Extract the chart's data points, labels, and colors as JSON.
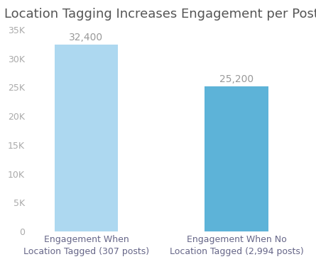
{
  "title": "Location Tagging Increases Engagement per Post",
  "categories": [
    "Engagement When\nLocation Tagged (307 posts)",
    "Engagement When No\nLocation Tagged (2,994 posts)"
  ],
  "values": [
    32400,
    25200
  ],
  "bar_labels": [
    "32,400",
    "25,200"
  ],
  "bar_colors": [
    "#add8f0",
    "#5db3d8"
  ],
  "ylim": [
    0,
    35000
  ],
  "ytick_values": [
    0,
    5000,
    10000,
    15000,
    20000,
    25000,
    30000,
    35000
  ],
  "ytick_labels": [
    "0",
    "5K",
    "10K",
    "15K",
    "20K",
    "25K",
    "30K",
    "35K"
  ],
  "background_color": "#ffffff",
  "title_color": "#555555",
  "tick_color": "#aaaaaa",
  "xlabel_color": "#666688",
  "bar_label_color": "#999999",
  "title_fontsize": 13,
  "tick_fontsize": 9,
  "bar_label_fontsize": 10,
  "xlabel_fontsize": 9,
  "bar_width": 0.55,
  "bar_gap": 1.3
}
